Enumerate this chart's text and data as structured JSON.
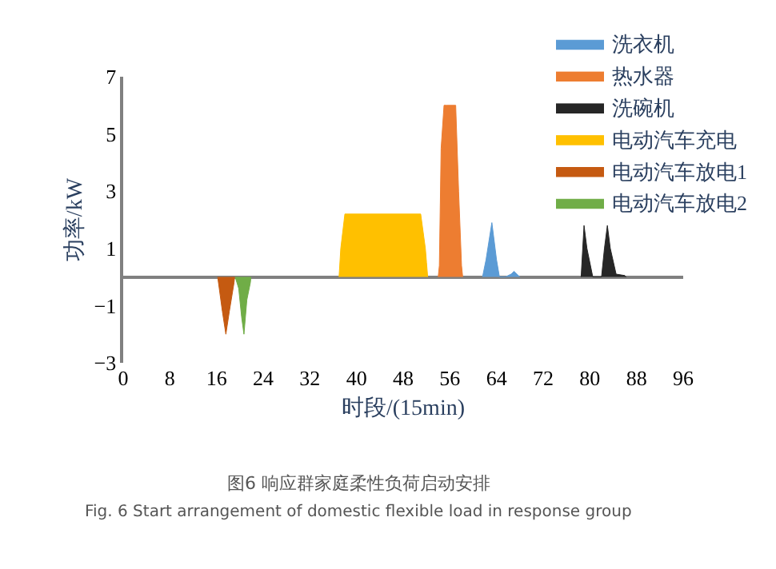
{
  "chart_data": {
    "type": "area",
    "xlabel": "时段/(15min)",
    "ylabel": "功率/kW",
    "xlim": [
      0,
      96
    ],
    "xticks": [
      0,
      8,
      16,
      24,
      32,
      40,
      48,
      56,
      64,
      72,
      80,
      88,
      96
    ],
    "ylim": [
      -3,
      7
    ],
    "yticks": [
      -3,
      -1,
      1,
      3,
      5,
      7
    ],
    "legend": "top right",
    "annotations": [
      "图6 响应群家庭柔性负荷启动安排",
      "Fig. 6 Start arrangement of domestic flexible load in response group"
    ],
    "series": [
      {
        "name": "洗衣机",
        "color": "#5b9bd5",
        "x": [
          61.6,
          62.2,
          63.2,
          64,
          64.5,
          65.5,
          66.5,
          67,
          67.5,
          68
        ],
        "values": [
          0,
          0.6,
          1.9,
          0.6,
          0,
          0,
          0.1,
          0.2,
          0.1,
          0
        ]
      },
      {
        "name": "热水器",
        "color": "#ed7d31",
        "x": [
          54,
          54.2,
          54.5,
          55,
          55.5,
          57,
          57.5,
          58,
          58.2
        ],
        "values": [
          0,
          0.4,
          4.5,
          6,
          6,
          6,
          3,
          0.4,
          0
        ]
      },
      {
        "name": "洗碗机",
        "color": "#262626",
        "x": [
          78.5,
          79,
          79.5,
          80.5,
          82,
          82.5,
          83,
          83.5,
          84.5,
          86,
          86.2
        ],
        "values": [
          0,
          1.8,
          1,
          0,
          0,
          1,
          1.8,
          1,
          0.1,
          0.05,
          0
        ]
      },
      {
        "name": "电动汽车充电",
        "color": "#ffc000",
        "x": [
          37,
          37.3,
          38,
          51,
          51.8,
          52,
          52.2
        ],
        "values": [
          0,
          1,
          2.2,
          2.2,
          1,
          0.5,
          0
        ]
      },
      {
        "name": "电动汽车放电1",
        "color": "#c55a11",
        "x": [
          16.2,
          17,
          17.6,
          18.2,
          19,
          19.1
        ],
        "values": [
          0,
          -1.2,
          -2,
          -1.2,
          -0.2,
          0
        ]
      },
      {
        "name": "电动汽车放电2",
        "color": "#70ad47",
        "x": [
          19.2,
          19.8,
          20.3,
          20.7,
          21.2,
          21.8,
          21.9
        ],
        "values": [
          0,
          -0.4,
          -1.4,
          -2,
          -0.8,
          -0.2,
          0
        ]
      }
    ]
  }
}
